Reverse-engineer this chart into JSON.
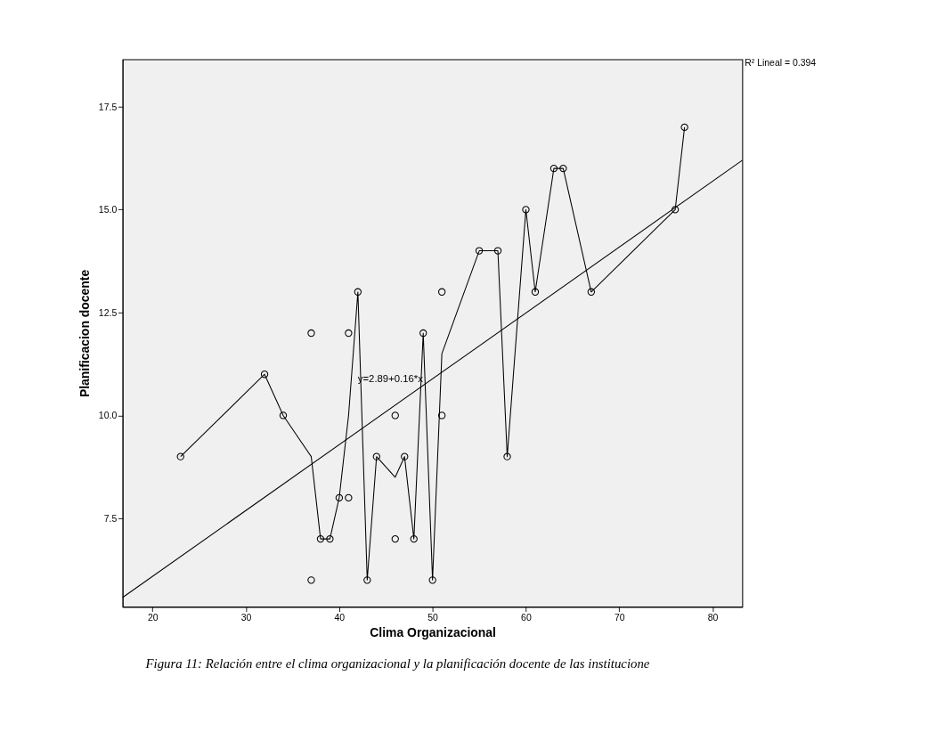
{
  "chart_data": {
    "type": "scatter",
    "xlabel": "Clima Organizacional",
    "ylabel": "Planificacion docente",
    "xlim": [
      16.8,
      83.2
    ],
    "ylim": [
      5.35,
      18.65
    ],
    "xticks": [
      20,
      30,
      40,
      50,
      60,
      70,
      80
    ],
    "yticks": [
      {
        "value": 7.5,
        "label": "7.5"
      },
      {
        "value": 10,
        "label": "10.0"
      },
      {
        "value": 12.5,
        "label": "12.5"
      },
      {
        "value": 15,
        "label": "15.0"
      },
      {
        "value": 17.5,
        "label": "17.5"
      }
    ],
    "grid": false,
    "series": [
      {
        "type": "scatter",
        "color": "#000000",
        "marker": "circle",
        "x": [
          23,
          32,
          34,
          37,
          37,
          38,
          39,
          40,
          41,
          41,
          42,
          43,
          44,
          46,
          46,
          47,
          48,
          49,
          50,
          51,
          51,
          55,
          57,
          58,
          60,
          61,
          63,
          64,
          67,
          76,
          77
        ],
        "values": [
          9,
          11,
          10,
          12,
          6,
          7,
          7,
          8,
          12,
          8,
          13,
          6,
          9,
          10,
          7,
          9,
          7,
          12,
          6,
          13,
          10,
          14,
          14,
          9,
          15,
          13,
          16,
          16,
          13,
          15,
          17
        ]
      },
      {
        "type": "line",
        "color": "#000000",
        "marker": "none",
        "line_style": "solid",
        "x": [
          23,
          32,
          34,
          37,
          38,
          39,
          40,
          41,
          42,
          43,
          44,
          46,
          47,
          48,
          49,
          50,
          51,
          55,
          57,
          58,
          60,
          61,
          63,
          64,
          67,
          76,
          77
        ],
        "values": [
          9,
          11,
          10,
          9,
          7,
          7,
          8,
          10,
          13,
          6,
          9,
          8.5,
          9,
          7,
          12,
          6,
          11.5,
          14,
          14,
          9,
          15,
          13,
          16,
          16,
          13,
          15,
          17
        ]
      },
      {
        "type": "line",
        "color": "#000000",
        "marker": "none",
        "line_style": "solid",
        "x": [
          16.8,
          83.2
        ],
        "values": [
          5.58,
          16.2
        ]
      }
    ],
    "annotations": [
      "y=2.89+0.16*x",
      "R² Lineal = 0.394",
      "Figura 11: Relación entre el clima organizacional y la planificación docente de las institucione"
    ]
  }
}
